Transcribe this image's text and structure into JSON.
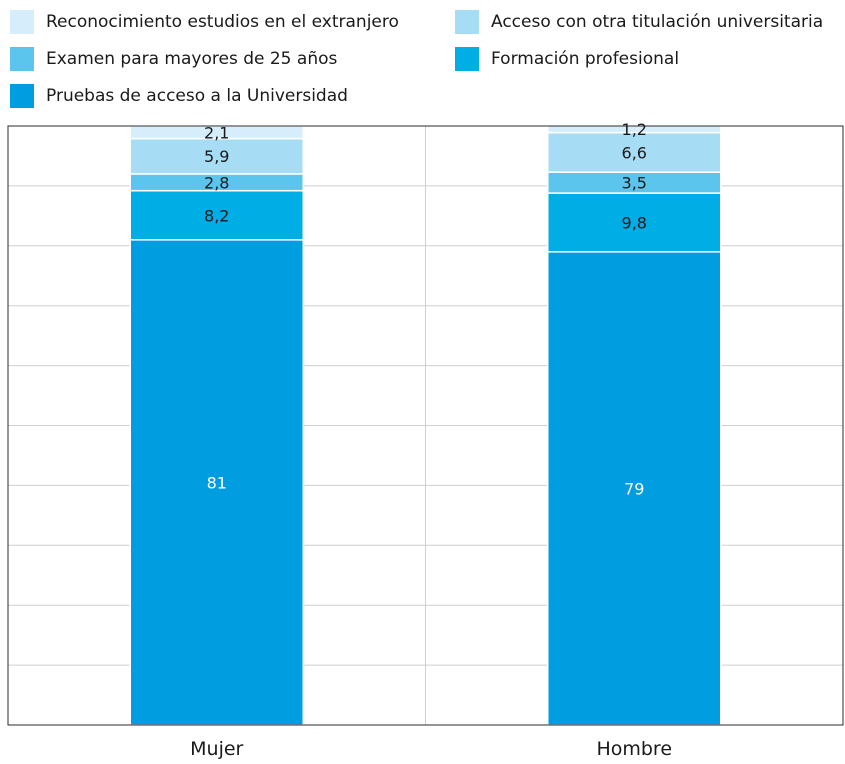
{
  "chart_data": {
    "type": "bar",
    "stacked": true,
    "categories": [
      "Mujer",
      "Hombre"
    ],
    "series": [
      {
        "name": "Pruebas de acceso a la Universidad",
        "color": "#009de0",
        "values": [
          81,
          79
        ],
        "labels": [
          "81",
          "79"
        ]
      },
      {
        "name": "Formación profesional",
        "color": "#00aee6",
        "values": [
          8.2,
          9.8
        ],
        "labels": [
          "8,2",
          "9,8"
        ]
      },
      {
        "name": "Examen para mayores de 25 años",
        "color": "#5cc5ee",
        "values": [
          2.8,
          3.5
        ],
        "labels": [
          "2,8",
          "3,5"
        ]
      },
      {
        "name": "Acceso con otra titulación universitaria",
        "color": "#a6dcf4",
        "values": [
          5.9,
          6.6
        ],
        "labels": [
          "5,9",
          "6,6"
        ]
      },
      {
        "name": "Reconocimiento estudios en el extranjero",
        "color": "#d6eefb",
        "values": [
          2.1,
          1.2
        ],
        "labels": [
          "2,1",
          "1,2"
        ]
      }
    ],
    "ylim": [
      0,
      100
    ],
    "grid": true,
    "legend_position": "top",
    "title": "",
    "xlabel": "",
    "ylabel": ""
  }
}
